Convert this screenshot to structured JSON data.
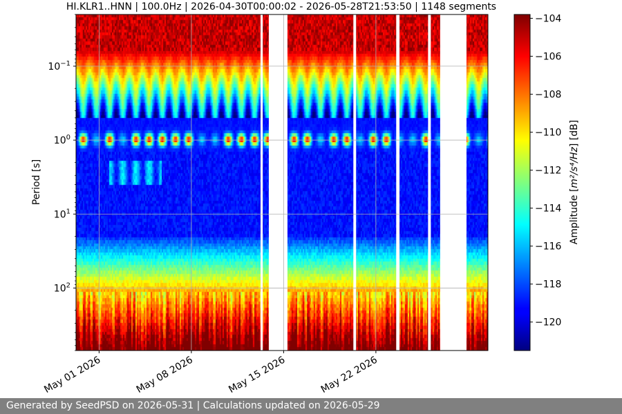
{
  "chart_data": {
    "type": "heatmap",
    "title": "HI.KLR1..HNN | 100.0Hz | 2026-04-30T00:00:02 - 2026-05-28T21:53:50 | 1148 segments",
    "ylabel": "Period [s]",
    "y_scale": "log",
    "y_reversed": true,
    "ylim": [
      0.02,
      700
    ],
    "y_ticks": [
      {
        "value": 0.1,
        "base": "10",
        "exp": "−1"
      },
      {
        "value": 1,
        "base": "10",
        "exp": "0"
      },
      {
        "value": 10,
        "base": "10",
        "exp": "1"
      },
      {
        "value": 100,
        "base": "10",
        "exp": "2"
      }
    ],
    "xlim": [
      "2026-04-29T06:00",
      "2026-05-30T12:00"
    ],
    "x_ticks": [
      {
        "date": "2026-05-01",
        "label": "May 01 2026"
      },
      {
        "date": "2026-05-08",
        "label": "May 08 2026"
      },
      {
        "date": "2026-05-15",
        "label": "May 15 2026"
      },
      {
        "date": "2026-05-22",
        "label": "May 22 2026"
      }
    ],
    "data_gaps": [
      {
        "start": "2026-05-13T06:00",
        "end": "2026-05-13T10:00"
      },
      {
        "start": "2026-05-13T21:00",
        "end": "2026-05-15T07:00"
      },
      {
        "start": "2026-05-20T07:00",
        "end": "2026-05-20T12:00"
      },
      {
        "start": "2026-05-23T13:00",
        "end": "2026-05-23T19:00"
      },
      {
        "start": "2026-05-25T23:00",
        "end": "2026-05-26T04:00"
      },
      {
        "start": "2026-05-26T21:00",
        "end": "2026-05-28T21:00"
      }
    ],
    "colorbar": {
      "label_prefix": "Amplitude [",
      "label_unit": "m²/s⁴/Hz",
      "label_suffix": "] [dB]",
      "range": [
        -121.5,
        -103.8
      ],
      "ticks": [
        -104,
        -106,
        -108,
        -110,
        -112,
        -114,
        -116,
        -118,
        -120
      ],
      "tick_labels": [
        "−104",
        "−106",
        "−108",
        "−110",
        "−112",
        "−114",
        "−116",
        "−118",
        "−120"
      ],
      "colormap": "jet"
    },
    "grid": true
  },
  "footer": {
    "text": "Generated by SeedPSD on 2026-05-31 | Calculations updated on 2026-05-29"
  }
}
